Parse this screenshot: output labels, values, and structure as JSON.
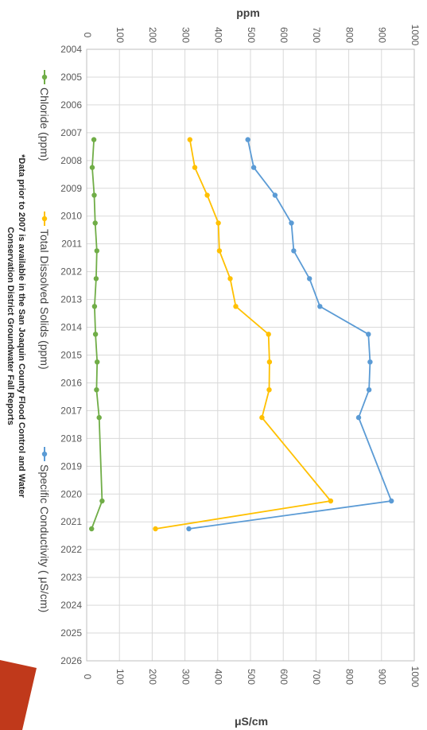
{
  "chart_data": {
    "type": "line",
    "orientation": "rotated 90 degrees clockwise (x axis runs top-to-bottom, values run left-to-right)",
    "title": "",
    "xlabel": "",
    "ylabel": "ppm",
    "secondary_ylabel": "μS/cm",
    "xlim": [
      2004,
      2026
    ],
    "ylim": [
      0,
      1000
    ],
    "x_ticks": [
      "2004",
      "2005",
      "2006",
      "2007",
      "2008",
      "2009",
      "2010",
      "2011",
      "2012",
      "2013",
      "2014",
      "2015",
      "2016",
      "2017",
      "2018",
      "2019",
      "2020",
      "2021",
      "2022",
      "2023",
      "2024",
      "2025",
      "2026"
    ],
    "y_ticks": [
      "0",
      "100",
      "200",
      "300",
      "400",
      "500",
      "600",
      "700",
      "800",
      "900",
      "1000"
    ],
    "grid": true,
    "legend_position": "bottom",
    "series": [
      {
        "name": "Chloride (ppm)",
        "color": "#70ad47",
        "x": [
          2007.25,
          2008.25,
          2009.25,
          2010.25,
          2011.25,
          2012.25,
          2013.25,
          2014.25,
          2015.25,
          2016.25,
          2017.25,
          2020.25,
          2021.25
        ],
        "values": [
          22,
          17,
          23,
          26,
          31,
          29,
          24,
          27,
          32,
          30,
          38,
          47,
          15
        ]
      },
      {
        "name": "Total Dissolved Solids (ppm)",
        "color": "#ffc000",
        "x": [
          2007.25,
          2008.25,
          2009.25,
          2010.25,
          2011.25,
          2012.25,
          2013.25,
          2014.25,
          2015.25,
          2016.25,
          2017.25,
          2020.25,
          2021.25
        ],
        "values": [
          315,
          330,
          368,
          402,
          405,
          438,
          455,
          555,
          558,
          557,
          535,
          745,
          210
        ]
      },
      {
        "name": "Specific Conductivity ( μS/cm)",
        "color": "#5b9bd5",
        "x": [
          2007.25,
          2008.25,
          2009.25,
          2010.25,
          2011.25,
          2012.25,
          2013.25,
          2014.25,
          2015.25,
          2016.25,
          2017.25,
          2020.25,
          2021.25
        ],
        "values": [
          492,
          510,
          575,
          625,
          632,
          680,
          712,
          860,
          865,
          862,
          830,
          930,
          312
        ]
      }
    ],
    "footnote": [
      "*Data prior to 2007 is available in the San Joaquin County Flood Control and Water",
      "Conservation District Groundwater Fall Reports"
    ]
  },
  "accent": {
    "stripe": "#c0391b"
  }
}
